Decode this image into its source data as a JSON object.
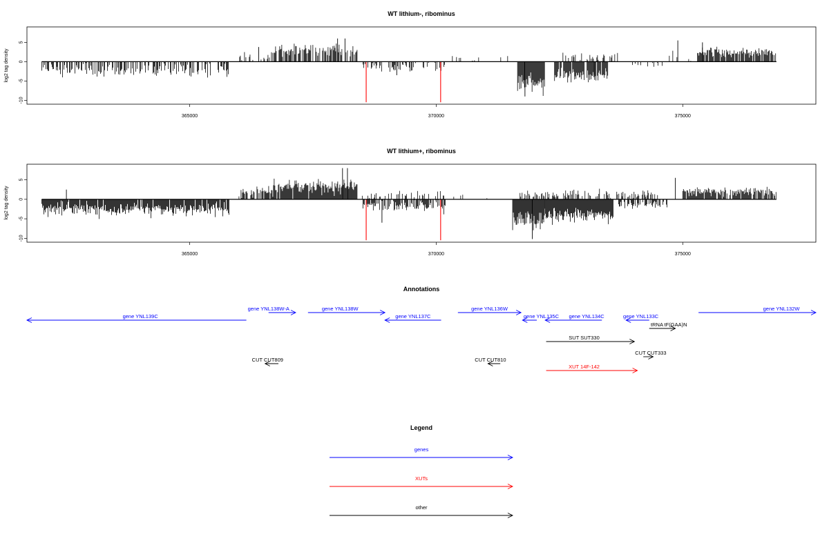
{
  "chart_data": [
    {
      "type": "bar",
      "title": "WT lithium-, ribominus",
      "ylabel": "log2 tag density",
      "xlim": [
        361700,
        377700
      ],
      "ylim": [
        -11,
        9
      ],
      "yticks": [
        -10,
        -5,
        0,
        5
      ],
      "xticks": [
        365000,
        370000,
        375000
      ],
      "grid": false,
      "seed": 17,
      "x_range": [
        362000,
        376900
      ],
      "regions": [
        {
          "x0": 362000,
          "x1": 365800,
          "sign": -1,
          "mean": 2.2,
          "sd": 1.0,
          "density": 0.55
        },
        {
          "x0": 366000,
          "x1": 366700,
          "sign": 1,
          "mean": 1.6,
          "sd": 0.9,
          "density": 0.35
        },
        {
          "x0": 366700,
          "x1": 368400,
          "sign": 1,
          "mean": 2.9,
          "sd": 1.0,
          "density": 0.7
        },
        {
          "x0": 368500,
          "x1": 370200,
          "sign": -1,
          "mean": 1.3,
          "sd": 0.8,
          "density": 0.35
        },
        {
          "x0": 370300,
          "x1": 371500,
          "sign": 1,
          "mean": 1.0,
          "sd": 0.6,
          "density": 0.06
        },
        {
          "x0": 371650,
          "x1": 372200,
          "sign": -1,
          "mean": 5.5,
          "sd": 1.6,
          "density": 1.0
        },
        {
          "x0": 372400,
          "x1": 373500,
          "sign": -1,
          "mean": 3.4,
          "sd": 1.1,
          "density": 0.9
        },
        {
          "x0": 372500,
          "x1": 373700,
          "sign": 1,
          "mean": 1.3,
          "sd": 0.6,
          "density": 0.3
        },
        {
          "x0": 373700,
          "x1": 374700,
          "sign": -1,
          "mean": 0.8,
          "sd": 0.4,
          "density": 0.08
        },
        {
          "x0": 374700,
          "x1": 375200,
          "sign": 1,
          "mean": 1.5,
          "sd": 1.0,
          "density": 0.12
        },
        {
          "x0": 375300,
          "x1": 376900,
          "sign": 1,
          "mean": 2.5,
          "sd": 0.8,
          "density": 0.85
        }
      ],
      "spikes": [
        {
          "x": 366400,
          "value": 3.8
        },
        {
          "x": 368000,
          "value": 6.0
        },
        {
          "x": 368150,
          "value": 6.0
        },
        {
          "x": 369200,
          "value": -3.5
        },
        {
          "x": 371800,
          "value": -9.0
        },
        {
          "x": 373200,
          "value": -4.0
        },
        {
          "x": 374900,
          "value": 5.5
        },
        {
          "x": 375400,
          "value": 5.0
        }
      ],
      "red_bars": [
        {
          "x": 368580,
          "value": -10.5
        },
        {
          "x": 370090,
          "value": -10.5
        }
      ]
    },
    {
      "type": "bar",
      "title": "WT lithium+, ribominus",
      "ylabel": "log2 tag density",
      "xlim": [
        361700,
        377700
      ],
      "ylim": [
        -11,
        9
      ],
      "yticks": [
        -10,
        -5,
        0,
        5
      ],
      "xticks": [
        365000,
        370000,
        375000
      ],
      "grid": false,
      "seed": 91,
      "x_range": [
        362000,
        376900
      ],
      "regions": [
        {
          "x0": 362000,
          "x1": 365800,
          "sign": -1,
          "mean": 2.6,
          "sd": 1.1,
          "density": 0.95
        },
        {
          "x0": 366000,
          "x1": 366700,
          "sign": 1,
          "mean": 2.0,
          "sd": 1.0,
          "density": 0.6
        },
        {
          "x0": 366700,
          "x1": 368400,
          "sign": 1,
          "mean": 3.2,
          "sd": 1.2,
          "density": 0.95
        },
        {
          "x0": 368500,
          "x1": 370200,
          "sign": -1,
          "mean": 1.8,
          "sd": 1.0,
          "density": 0.75
        },
        {
          "x0": 368500,
          "x1": 370200,
          "sign": 1,
          "mean": 1.2,
          "sd": 0.6,
          "density": 0.25
        },
        {
          "x0": 370300,
          "x1": 371500,
          "sign": 1,
          "mean": 1.0,
          "sd": 0.6,
          "density": 0.1
        },
        {
          "x0": 371550,
          "x1": 372200,
          "sign": -1,
          "mean": 5.2,
          "sd": 1.6,
          "density": 1.0
        },
        {
          "x0": 372200,
          "x1": 373600,
          "sign": -1,
          "mean": 4.0,
          "sd": 1.2,
          "density": 1.0
        },
        {
          "x0": 371700,
          "x1": 374500,
          "sign": 1,
          "mean": 1.3,
          "sd": 0.7,
          "density": 0.45
        },
        {
          "x0": 373700,
          "x1": 374700,
          "sign": -1,
          "mean": 1.4,
          "sd": 0.7,
          "density": 0.55
        },
        {
          "x0": 375000,
          "x1": 376900,
          "sign": 1,
          "mean": 2.0,
          "sd": 0.8,
          "density": 0.85
        }
      ],
      "spikes": [
        {
          "x": 362500,
          "value": 2.5
        },
        {
          "x": 368100,
          "value": 8.0
        },
        {
          "x": 368200,
          "value": 8.0
        },
        {
          "x": 371950,
          "value": -10.2
        },
        {
          "x": 374850,
          "value": 5.5
        },
        {
          "x": 368900,
          "value": -6.0
        }
      ],
      "red_bars": [
        {
          "x": 368580,
          "value": -10.5
        },
        {
          "x": 370090,
          "value": -10.5
        }
      ]
    }
  ],
  "annotations": {
    "title": "Annotations",
    "features": [
      {
        "label": "gene YNL139C",
        "x0": 361700,
        "x1": 366150,
        "dir": "left",
        "row": 1,
        "label_x": 364000,
        "color": "#0000ff"
      },
      {
        "label": "gene YNL138W-A",
        "x0": 366600,
        "x1": 367150,
        "dir": "right",
        "row": 0,
        "label_x": 366600,
        "color": "#0000ff"
      },
      {
        "label": "gene YNL138W",
        "x0": 367400,
        "x1": 368960,
        "dir": "right",
        "row": 0,
        "label_x": 368050,
        "color": "#0000ff"
      },
      {
        "label": "gene YNL137C",
        "x0": 368960,
        "x1": 370100,
        "dir": "left",
        "row": 1,
        "label_x": 369530,
        "color": "#0000ff"
      },
      {
        "label": "gene YNL136W",
        "x0": 370440,
        "x1": 371720,
        "dir": "right",
        "row": 0,
        "label_x": 371080,
        "color": "#0000ff"
      },
      {
        "label": "gene YNL135C",
        "x0": 371750,
        "x1": 372040,
        "dir": "left",
        "row": 1,
        "label_x": 372130,
        "color": "#0000ff"
      },
      {
        "label": "gene YNL134C",
        "x0": 372210,
        "x1": 373360,
        "dir": "left",
        "row": 1,
        "label_x": 373050,
        "color": "#0000ff"
      },
      {
        "label": "gene YNL133C",
        "x0": 373850,
        "x1": 374320,
        "dir": "left",
        "row": 1,
        "label_x": 374150,
        "color": "#0000ff"
      },
      {
        "label": "gene YNL132W",
        "x0": 375320,
        "x1": 377700,
        "dir": "right",
        "row": 0,
        "label_x": 377000,
        "color": "#0000ff"
      },
      {
        "label": "tRNA tF(GAA)N",
        "x0": 374320,
        "x1": 374850,
        "dir": "right",
        "row": 2,
        "label_x": 374720,
        "color": "#000000"
      },
      {
        "label": "SUT SUT330",
        "x0": 372230,
        "x1": 374020,
        "dir": "right",
        "row": 3,
        "label_x": 373000,
        "color": "#000000"
      },
      {
        "label": "CUT CUT333",
        "x0": 374200,
        "x1": 374400,
        "dir": "right",
        "row": 4,
        "label_x": 374350,
        "color": "#000000"
      },
      {
        "label": "CUT CUT809",
        "x0": 366530,
        "x1": 366800,
        "dir": "left",
        "row": 5,
        "label_x": 366580,
        "color": "#000000"
      },
      {
        "label": "CUT CUT810",
        "x0": 371050,
        "x1": 371300,
        "dir": "left",
        "row": 5,
        "label_x": 371100,
        "color": "#000000"
      },
      {
        "label": "XUT 14F-142",
        "x0": 372230,
        "x1": 374080,
        "dir": "right",
        "row": 6,
        "label_x": 373000,
        "color": "#ff0000"
      }
    ]
  },
  "legend": {
    "title": "Legend",
    "items": [
      {
        "label": "genes",
        "color": "#0000ff"
      },
      {
        "label": "XUTs",
        "color": "#ff0000"
      },
      {
        "label": "other",
        "color": "#000000"
      }
    ]
  }
}
